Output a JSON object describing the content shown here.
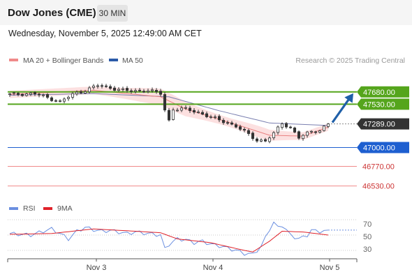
{
  "header": {
    "instrument": "Dow Jones (CME)",
    "timeframe": "30 MIN",
    "datetime": "Wednesday, November 5, 2025 12:49:00 AM CET"
  },
  "legend": {
    "ma20_label": "MA 20 + Bollinger Bands",
    "ma50_label": "MA 50",
    "credit": "Research © 2025 Trading Central"
  },
  "rsi_legend": {
    "rsi_label": "RSI",
    "ma_label": "9MA"
  },
  "colors": {
    "green": "#55a51c",
    "blue": "#1e5fd0",
    "red": "#f08a8a",
    "dark": "#333333",
    "arrow": "#1f5fa8",
    "rsi": "#6b8fe0",
    "rsi_ma": "#e0222a",
    "band": "#fbd5d5"
  },
  "levels": [
    {
      "value": 47680,
      "label": "47680.00",
      "kind": "resistance",
      "color": "#55a51c"
    },
    {
      "value": 47530,
      "label": "47530.00",
      "kind": "resistance",
      "color": "#55a51c"
    },
    {
      "value": 47289,
      "label": "47289.00",
      "kind": "last-price",
      "color": "#333333"
    },
    {
      "value": 47000,
      "label": "47000.00",
      "kind": "pivot",
      "color": "#1e5fd0"
    },
    {
      "value": 46770,
      "label": "46770.00",
      "kind": "support",
      "color": "#f08a8a"
    },
    {
      "value": 46530,
      "label": "46530.00",
      "kind": "support",
      "color": "#f08a8a"
    }
  ],
  "rsi_axis": {
    "ticks": [
      "70",
      "50",
      "30"
    ]
  },
  "x_axis": {
    "labels": [
      "Nov 3",
      "Nov 4",
      "Nov 5"
    ]
  },
  "chart_data": {
    "type": "candlestick",
    "price_range": [
      46450,
      47900
    ],
    "candle_count": 77,
    "anchors": [
      [
        0,
        47650
      ],
      [
        6,
        47660
      ],
      [
        9,
        47610
      ],
      [
        12,
        47560
      ],
      [
        15,
        47650
      ],
      [
        18,
        47700
      ],
      [
        21,
        47760
      ],
      [
        24,
        47730
      ],
      [
        27,
        47700
      ],
      [
        30,
        47690
      ],
      [
        33,
        47700
      ],
      [
        36,
        47660
      ],
      [
        37,
        47460
      ],
      [
        38,
        47330
      ],
      [
        39,
        47470
      ],
      [
        42,
        47470
      ],
      [
        45,
        47430
      ],
      [
        48,
        47370
      ],
      [
        51,
        47320
      ],
      [
        54,
        47260
      ],
      [
        57,
        47160
      ],
      [
        59,
        47090
      ],
      [
        61,
        47080
      ],
      [
        63,
        47170
      ],
      [
        65,
        47300
      ],
      [
        67,
        47240
      ],
      [
        69,
        47120
      ],
      [
        72,
        47200
      ],
      [
        74,
        47210
      ],
      [
        76,
        47289
      ]
    ],
    "ma20": [
      [
        0,
        47650
      ],
      [
        20,
        47700
      ],
      [
        36,
        47620
      ],
      [
        42,
        47470
      ],
      [
        56,
        47250
      ],
      [
        62,
        47150
      ],
      [
        70,
        47140
      ],
      [
        76,
        47250
      ]
    ],
    "ma50": [
      [
        0,
        47640
      ],
      [
        20,
        47660
      ],
      [
        38,
        47620
      ],
      [
        50,
        47450
      ],
      [
        62,
        47300
      ],
      [
        76,
        47270
      ]
    ],
    "rsi_range": [
      20,
      80
    ],
    "rsi": [
      [
        0,
        52
      ],
      [
        5,
        50
      ],
      [
        8,
        55
      ],
      [
        10,
        58
      ],
      [
        12,
        52
      ],
      [
        14,
        45
      ],
      [
        16,
        55
      ],
      [
        18,
        60
      ],
      [
        20,
        57
      ],
      [
        22,
        55
      ],
      [
        24,
        56
      ],
      [
        26,
        54
      ],
      [
        28,
        52
      ],
      [
        30,
        54
      ],
      [
        33,
        52
      ],
      [
        36,
        50
      ],
      [
        37,
        32
      ],
      [
        38,
        38
      ],
      [
        40,
        45
      ],
      [
        42,
        44
      ],
      [
        44,
        40
      ],
      [
        46,
        42
      ],
      [
        48,
        38
      ],
      [
        50,
        36
      ],
      [
        52,
        33
      ],
      [
        54,
        30
      ],
      [
        56,
        26
      ],
      [
        58,
        25
      ],
      [
        60,
        35
      ],
      [
        62,
        58
      ],
      [
        63,
        66
      ],
      [
        64,
        60
      ],
      [
        65,
        63
      ],
      [
        67,
        50
      ],
      [
        69,
        45
      ],
      [
        71,
        50
      ],
      [
        72,
        56
      ],
      [
        74,
        55
      ],
      [
        76,
        55
      ]
    ],
    "rsi_ma": [
      [
        0,
        51
      ],
      [
        10,
        52
      ],
      [
        20,
        58
      ],
      [
        30,
        55
      ],
      [
        36,
        53
      ],
      [
        40,
        45
      ],
      [
        48,
        40
      ],
      [
        56,
        30
      ],
      [
        58,
        28
      ],
      [
        62,
        42
      ],
      [
        65,
        55
      ],
      [
        70,
        54
      ],
      [
        76,
        50
      ]
    ]
  }
}
